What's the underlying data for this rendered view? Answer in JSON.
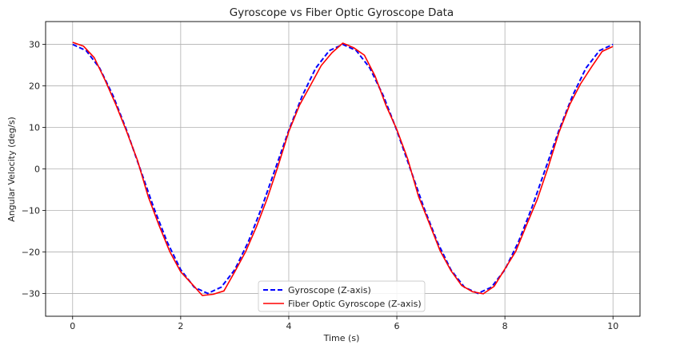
{
  "chart_data": {
    "type": "line",
    "title": "Gyroscope vs Fiber Optic Gyroscope Data",
    "xlabel": "Time (s)",
    "ylabel": "Angular Velocity (deg/s)",
    "xlim": [
      -0.5,
      10.5
    ],
    "ylim": [
      -35.5,
      35.5
    ],
    "xticks": [
      0,
      2,
      4,
      6,
      8,
      10
    ],
    "yticks": [
      30,
      20,
      10,
      0,
      -10,
      -20,
      -30
    ],
    "ytick_labels": [
      "30",
      "20",
      "10",
      "0",
      "−10",
      "−20",
      "−30"
    ],
    "grid": true,
    "legend_position": "lower center",
    "series": [
      {
        "name": "Gyroscope (Z-axis)",
        "color": "#0000ff",
        "style": "dashed",
        "x": [
          0,
          0.25,
          0.5,
          0.75,
          1,
          1.25,
          1.5,
          1.75,
          2,
          2.25,
          2.5,
          2.75,
          3,
          3.25,
          3.5,
          3.75,
          4,
          4.25,
          4.5,
          4.75,
          5,
          5.25,
          5.5,
          5.75,
          6,
          6.25,
          6.5,
          6.75,
          7,
          7.25,
          7.5,
          7.75,
          8,
          8.25,
          8.5,
          8.75,
          9,
          9.25,
          9.5,
          9.75,
          10
        ],
        "y": [
          30,
          28.5,
          24.3,
          17.6,
          9.3,
          0,
          -9.3,
          -17.6,
          -24.3,
          -28.5,
          -30,
          -28.5,
          -24.3,
          -17.6,
          -9.3,
          0,
          9.3,
          17.6,
          24.3,
          28.5,
          30,
          28.5,
          24.3,
          17.6,
          9.3,
          0,
          -9.3,
          -17.6,
          -24.3,
          -28.5,
          -30,
          -28.5,
          -24.3,
          -17.6,
          -9.3,
          0,
          9.3,
          17.6,
          24.3,
          28.5,
          30
        ]
      },
      {
        "name": "Fiber Optic Gyroscope (Z-axis)",
        "color": "#ff0000",
        "style": "solid",
        "x": [
          0,
          0.2,
          0.4,
          0.6,
          0.8,
          1,
          1.2,
          1.4,
          1.6,
          1.8,
          2,
          2.2,
          2.4,
          2.6,
          2.8,
          3,
          3.2,
          3.4,
          3.6,
          3.8,
          4,
          4.2,
          4.4,
          4.6,
          4.8,
          5,
          5.2,
          5.4,
          5.6,
          5.8,
          6,
          6.2,
          6.4,
          6.6,
          6.8,
          7,
          7.2,
          7.4,
          7.6,
          7.8,
          8,
          8.2,
          8.4,
          8.6,
          8.8,
          9,
          9.2,
          9.4,
          9.6,
          9.8,
          10
        ],
        "y": [
          30.5,
          29.6,
          26.8,
          21.4,
          15.5,
          9.0,
          2.1,
          -6.7,
          -13.6,
          -20.0,
          -24.8,
          -27.6,
          -30.5,
          -30.2,
          -29.4,
          -24.8,
          -20.0,
          -14.0,
          -7.2,
          0.6,
          9.0,
          15.4,
          20.1,
          24.9,
          28.0,
          30.3,
          29.2,
          27.4,
          22.3,
          15.3,
          9.5,
          2.4,
          -6.6,
          -13.1,
          -19.7,
          -24.5,
          -28.1,
          -29.6,
          -30.1,
          -28.3,
          -24.1,
          -19.9,
          -13.5,
          -7.3,
          0.4,
          8.8,
          15.5,
          20.5,
          24.5,
          28.3,
          29.5
        ]
      }
    ]
  }
}
